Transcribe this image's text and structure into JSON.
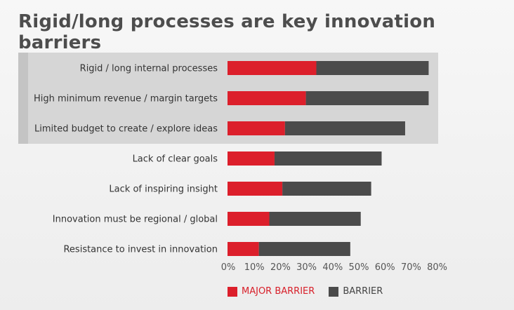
{
  "title": "Rigid/long processes are key innovation barriers",
  "colors": {
    "major": "#dc1f2b",
    "barrier": "#4b4b4b",
    "highlight": "#d6d6d6",
    "highlight_edge": "#c4c4c4"
  },
  "chart_data": {
    "type": "bar",
    "orientation": "horizontal",
    "stacked": true,
    "title": "Rigid/long processes are key innovation barriers",
    "categories": [
      "Rigid / long internal processes",
      "High minimum revenue / margin targets",
      "Limited budget to create / explore ideas",
      "Lack of clear goals",
      "Lack of inspiring insight",
      "Innovation must be regional / global",
      "Resistance to invest in innovation"
    ],
    "series": [
      {
        "name": "MAJOR BARRIER",
        "values": [
          34,
          30,
          22,
          18,
          21,
          16,
          12
        ]
      },
      {
        "name": "BARRIER",
        "values": [
          43,
          47,
          46,
          41,
          34,
          35,
          35
        ]
      }
    ],
    "highlighted_categories": [
      0,
      1,
      2
    ],
    "xlim": [
      0,
      80
    ],
    "xticks": [
      "0%",
      "10%",
      "20%",
      "30%",
      "40%",
      "50%",
      "60%",
      "70%",
      "80%"
    ],
    "grid": false,
    "legend_position": "bottom"
  }
}
